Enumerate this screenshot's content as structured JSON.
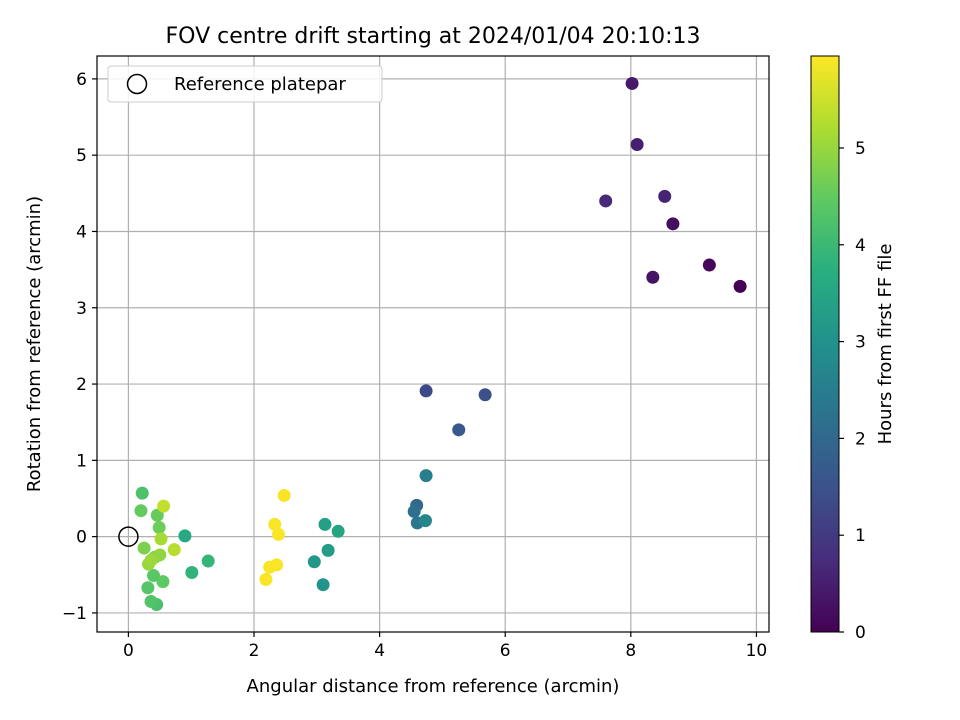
{
  "chart_data": {
    "type": "scatter",
    "title": "FOV centre drift starting at 2024/01/04 20:10:13",
    "xlabel": "Angular distance from reference (arcmin)",
    "ylabel": "Rotation from reference (arcmin)",
    "xlim": [
      -0.5,
      10.2
    ],
    "ylim": [
      -1.25,
      6.3
    ],
    "xticks": [
      0,
      2,
      4,
      6,
      8,
      10
    ],
    "yticks": [
      -1,
      0,
      1,
      2,
      3,
      4,
      5,
      6
    ],
    "grid": true,
    "legend": {
      "placement": "top-left",
      "entries": [
        "Reference platepar"
      ]
    },
    "reference_point": {
      "x": 0,
      "y": 0,
      "label": "Reference platepar"
    },
    "colorbar": {
      "label": "Hours from first FF file",
      "colormap": "viridis",
      "range": [
        0,
        5.95
      ],
      "ticks": [
        0,
        1,
        2,
        3,
        4,
        5
      ]
    },
    "points": [
      {
        "x": 9.74,
        "y": 3.28,
        "c": 0.02
      },
      {
        "x": 9.25,
        "y": 3.56,
        "c": 0.1
      },
      {
        "x": 8.67,
        "y": 4.1,
        "c": 0.2
      },
      {
        "x": 8.35,
        "y": 3.4,
        "c": 0.3
      },
      {
        "x": 8.02,
        "y": 5.94,
        "c": 0.4
      },
      {
        "x": 8.1,
        "y": 5.14,
        "c": 0.5
      },
      {
        "x": 8.54,
        "y": 4.46,
        "c": 0.6
      },
      {
        "x": 7.6,
        "y": 4.4,
        "c": 0.7
      },
      {
        "x": 4.74,
        "y": 1.91,
        "c": 1.3
      },
      {
        "x": 5.68,
        "y": 1.86,
        "c": 1.45
      },
      {
        "x": 5.26,
        "y": 1.4,
        "c": 1.65
      },
      {
        "x": 4.59,
        "y": 0.41,
        "c": 2.0
      },
      {
        "x": 4.55,
        "y": 0.33,
        "c": 2.15
      },
      {
        "x": 4.6,
        "y": 0.18,
        "c": 2.3
      },
      {
        "x": 4.74,
        "y": 0.8,
        "c": 2.55
      },
      {
        "x": 4.73,
        "y": 0.21,
        "c": 2.7
      },
      {
        "x": 3.1,
        "y": -0.63,
        "c": 3.05
      },
      {
        "x": 2.96,
        "y": -0.33,
        "c": 3.15
      },
      {
        "x": 3.18,
        "y": -0.18,
        "c": 3.25
      },
      {
        "x": 3.13,
        "y": 0.16,
        "c": 3.35
      },
      {
        "x": 3.34,
        "y": 0.07,
        "c": 3.45
      },
      {
        "x": 0.9,
        "y": 0.01,
        "c": 3.6
      },
      {
        "x": 1.01,
        "y": -0.47,
        "c": 3.85
      },
      {
        "x": 1.27,
        "y": -0.32,
        "c": 3.9
      },
      {
        "x": 0.22,
        "y": 0.57,
        "c": 4.25
      },
      {
        "x": 0.45,
        "y": -0.89,
        "c": 4.2
      },
      {
        "x": 0.36,
        "y": -0.85,
        "c": 4.3
      },
      {
        "x": 0.31,
        "y": -0.67,
        "c": 4.35
      },
      {
        "x": 0.4,
        "y": -0.51,
        "c": 4.4
      },
      {
        "x": 0.55,
        "y": -0.59,
        "c": 4.45
      },
      {
        "x": 0.2,
        "y": 0.34,
        "c": 4.5
      },
      {
        "x": 0.46,
        "y": 0.28,
        "c": 4.55
      },
      {
        "x": 0.49,
        "y": 0.12,
        "c": 4.6
      },
      {
        "x": 0.25,
        "y": -0.15,
        "c": 4.75
      },
      {
        "x": 0.42,
        "y": -0.27,
        "c": 4.85
      },
      {
        "x": 0.5,
        "y": -0.24,
        "c": 4.95
      },
      {
        "x": 0.32,
        "y": -0.36,
        "c": 5.0
      },
      {
        "x": 0.36,
        "y": -0.31,
        "c": 5.05
      },
      {
        "x": 0.52,
        "y": -0.03,
        "c": 5.15
      },
      {
        "x": 0.73,
        "y": -0.17,
        "c": 5.3
      },
      {
        "x": 0.56,
        "y": 0.4,
        "c": 5.4
      },
      {
        "x": 2.48,
        "y": 0.54,
        "c": 5.9
      },
      {
        "x": 2.33,
        "y": 0.16,
        "c": 5.9
      },
      {
        "x": 2.39,
        "y": 0.03,
        "c": 5.9
      },
      {
        "x": 2.25,
        "y": -0.4,
        "c": 5.9
      },
      {
        "x": 2.36,
        "y": -0.37,
        "c": 5.9
      },
      {
        "x": 2.19,
        "y": -0.56,
        "c": 5.9
      }
    ]
  }
}
